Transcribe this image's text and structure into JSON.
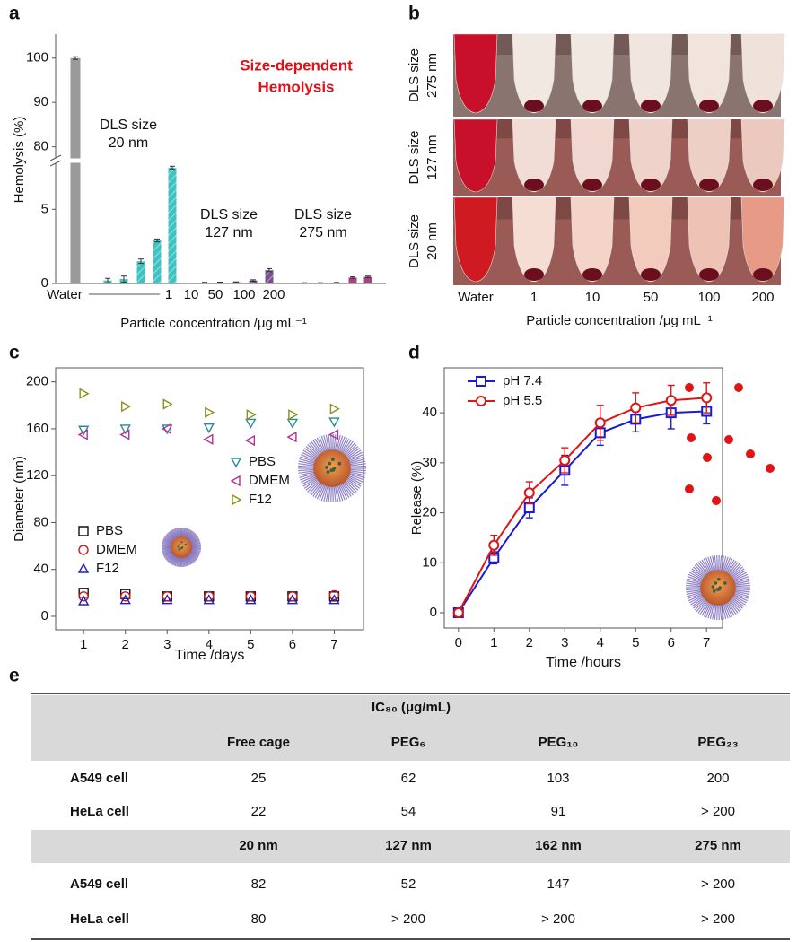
{
  "chart_data": [
    {
      "panel": "a",
      "type": "bar",
      "title_lines": [
        "Size-dependent",
        "Hemolysis"
      ],
      "title_color": "#e0101a",
      "ylabel": "Hemolysis (%)",
      "xlabel": "Particle concentration /μg mL⁻¹",
      "x_labels": [
        "Water",
        "1",
        "10",
        "50",
        "100",
        "200"
      ],
      "annotations": [
        [
          "DLS size",
          "20 nm"
        ],
        [
          "DLS size",
          "127 nm"
        ],
        [
          "DLS size",
          "275 nm"
        ]
      ],
      "ylim": [
        0,
        105
      ],
      "y_break": [
        8.1,
        77.5
      ],
      "yticks": [
        0,
        5,
        80,
        90,
        100
      ],
      "series": [
        {
          "color": "#9a9a9a",
          "hatch": false,
          "values": [
            100
          ],
          "errors": [
            0.3
          ]
        },
        {
          "color": "#3ec3c3",
          "hatch": true,
          "values": [
            0.2,
            0.3,
            1.5,
            2.9,
            7.8
          ],
          "errors": [
            0.15,
            0.2,
            0.15,
            0.1,
            0.1
          ]
        },
        {
          "color": "#7b4f8e",
          "hatch": true,
          "values": [
            0.05,
            0.06,
            0.08,
            0.2,
            0.9
          ],
          "errors": [
            0.03,
            0.03,
            0.03,
            0.05,
            0.1
          ]
        },
        {
          "color": "#a5437e",
          "hatch": false,
          "values": [
            0.03,
            0.03,
            0.05,
            0.4,
            0.45
          ],
          "errors": [
            0.02,
            0.02,
            0.02,
            0.05,
            0.05
          ]
        }
      ]
    },
    {
      "panel": "c",
      "type": "scatter",
      "xlabel": "Time /days",
      "ylabel": "Diameter (nm)",
      "x": [
        1,
        2,
        3,
        4,
        5,
        6,
        7
      ],
      "xlim": [
        0.33,
        7.7
      ],
      "xticks": [
        1,
        2,
        3,
        4,
        5,
        6,
        7
      ],
      "ylim": [
        -11.5,
        212
      ],
      "yticks": [
        0,
        40,
        80,
        120,
        160,
        200
      ],
      "series": [
        {
          "name": "PBS",
          "color": "#2a8c9a",
          "marker": "triangle-down",
          "values": [
            159,
            160,
            160,
            161,
            165,
            165,
            166
          ]
        },
        {
          "name": "DMEM",
          "color": "#b0309a",
          "marker": "triangle-left",
          "values": [
            155,
            155,
            160,
            151,
            150,
            153,
            155
          ]
        },
        {
          "name": "F12",
          "color": "#8f8f1a",
          "marker": "triangle-right",
          "values": [
            190,
            179,
            181,
            174,
            172,
            172,
            177
          ]
        },
        {
          "name": "PBS",
          "color": "#111111",
          "marker": "square",
          "values": [
            20,
            19,
            17,
            17,
            17,
            17,
            17
          ]
        },
        {
          "name": "DMEM",
          "color": "#d01818",
          "marker": "circle",
          "values": [
            17,
            17,
            17,
            17,
            17,
            17,
            18
          ]
        },
        {
          "name": "F12",
          "color": "#2020c0",
          "marker": "triangle-up",
          "values": [
            13,
            14,
            14,
            14,
            14,
            14,
            14
          ]
        }
      ]
    },
    {
      "panel": "d",
      "type": "line",
      "xlabel": "Time /hours",
      "ylabel": "Release (%)",
      "x": [
        0,
        1,
        2,
        3,
        4,
        5,
        6,
        7
      ],
      "xlim": [
        -0.4,
        7.45
      ],
      "xticks": [
        0,
        1,
        2,
        3,
        4,
        5,
        6,
        7
      ],
      "ylim": [
        -3.05,
        49
      ],
      "yticks": [
        0,
        10,
        20,
        30,
        40
      ],
      "legend": "upper left",
      "series": [
        {
          "name": "pH 7.4",
          "color": "#1a1ad0",
          "marker": "square",
          "values": [
            0,
            11,
            21,
            28.5,
            36,
            38.7,
            40,
            40.3
          ],
          "errors": [
            0.5,
            1.2,
            2,
            3,
            2.5,
            2.5,
            3.2,
            2.5
          ]
        },
        {
          "name": "pH 5.5",
          "color": "#e01414",
          "marker": "circle",
          "values": [
            0,
            13.5,
            24,
            30.5,
            38,
            41,
            42.5,
            43
          ],
          "errors": [
            0.5,
            2,
            2.2,
            2.5,
            3.5,
            3,
            3,
            3
          ]
        }
      ]
    }
  ],
  "photo_panel": {
    "panel": "b",
    "row_labels": [
      [
        "DLS size",
        "275 nm"
      ],
      [
        "DLS size",
        "127 nm"
      ],
      [
        "DLS size",
        "20 nm"
      ]
    ],
    "column_labels": [
      "Water",
      "1",
      "10",
      "50",
      "100",
      "200"
    ],
    "xlabel": "Particle concentration /μg mL⁻¹"
  },
  "table": {
    "panel": "e",
    "title": "IC₈₀ (μg/mL)",
    "sections": [
      {
        "header": [
          "Free cage",
          "PEG₆",
          "PEG₁₀",
          "PEG₂₃"
        ],
        "rows": [
          [
            "A549 cell",
            25,
            62,
            103,
            200
          ],
          [
            "HeLa cell",
            22,
            54,
            91,
            "> 200"
          ]
        ]
      },
      {
        "header": [
          "20 nm",
          "127 nm",
          "162 nm",
          "275 nm"
        ],
        "rows": [
          [
            "A549 cell",
            82,
            52,
            147,
            "> 200"
          ],
          [
            "HeLa cell",
            80,
            "> 200",
            "> 200",
            "> 200"
          ]
        ]
      }
    ]
  }
}
